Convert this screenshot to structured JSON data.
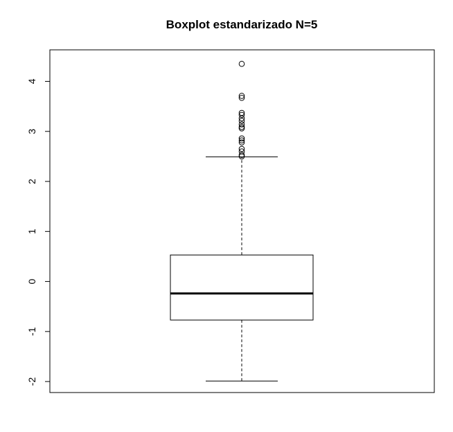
{
  "chart_data": {
    "type": "boxplot",
    "title": "Boxplot estandarizado N=5",
    "xlabel": "",
    "ylabel": "",
    "ylim": [
      -2.22,
      4.63
    ],
    "yticks": [
      -2,
      -1,
      0,
      1,
      2,
      3,
      4
    ],
    "ytick_labels": [
      "-2",
      "-1",
      "0",
      "1",
      "2",
      "3",
      "4"
    ],
    "grid": false,
    "box": {
      "whisker_low": -1.99,
      "q1": -0.77,
      "median": -0.24,
      "q3": 0.53,
      "whisker_high": 2.49
    },
    "outliers": [
      2.5,
      2.53,
      2.6,
      2.65,
      2.78,
      2.82,
      2.86,
      3.06,
      3.09,
      3.14,
      3.21,
      3.26,
      3.33,
      3.37,
      3.67,
      3.71,
      4.35
    ],
    "colors": {
      "stroke": "#000000",
      "background": "#ffffff"
    }
  }
}
